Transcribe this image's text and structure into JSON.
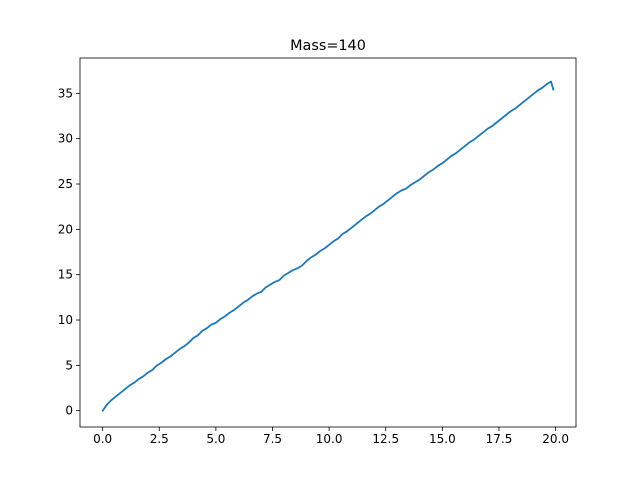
{
  "chart_data": {
    "type": "line",
    "title": "Mass=140",
    "xlabel": "",
    "ylabel": "",
    "xlim": [
      -1.0,
      20.9
    ],
    "ylim": [
      -1.8,
      38.9
    ],
    "x_ticks": [
      0.0,
      2.5,
      5.0,
      7.5,
      10.0,
      12.5,
      15.0,
      17.5,
      20.0
    ],
    "x_tick_labels": [
      "0.0",
      "2.5",
      "5.0",
      "7.5",
      "10.0",
      "12.5",
      "15.0",
      "17.5",
      "20.0"
    ],
    "y_ticks": [
      0,
      5,
      10,
      15,
      20,
      25,
      30,
      35
    ],
    "y_tick_labels": [
      "0",
      "5",
      "10",
      "15",
      "20",
      "25",
      "30",
      "35"
    ],
    "grid": false,
    "legend": "none",
    "line_color": "#1f77b4",
    "series": [
      {
        "x": [
          0.0,
          0.2,
          0.4,
          0.6,
          0.8,
          1.0,
          1.2,
          1.4,
          1.6,
          1.8,
          2.0,
          2.2,
          2.4,
          2.6,
          2.8,
          3.0,
          3.2,
          3.4,
          3.6,
          3.8,
          4.0,
          4.2,
          4.4,
          4.6,
          4.8,
          5.0,
          5.2,
          5.4,
          5.6,
          5.8,
          6.0,
          6.2,
          6.4,
          6.6,
          6.8,
          7.0,
          7.2,
          7.4,
          7.6,
          7.8,
          8.0,
          8.2,
          8.4,
          8.6,
          8.8,
          9.0,
          9.2,
          9.4,
          9.6,
          9.8,
          10.0,
          10.2,
          10.4,
          10.6,
          10.8,
          11.0,
          11.2,
          11.4,
          11.6,
          11.8,
          12.0,
          12.2,
          12.4,
          12.6,
          12.8,
          13.0,
          13.2,
          13.4,
          13.6,
          13.8,
          14.0,
          14.2,
          14.4,
          14.6,
          14.8,
          15.0,
          15.2,
          15.4,
          15.6,
          15.8,
          16.0,
          16.2,
          16.4,
          16.6,
          16.8,
          17.0,
          17.2,
          17.4,
          17.6,
          17.8,
          18.0,
          18.2,
          18.4,
          18.6,
          18.8,
          19.0,
          19.2,
          19.4,
          19.6,
          19.8,
          19.9
        ],
        "y": [
          0.0,
          0.7,
          1.2,
          1.6,
          2.0,
          2.4,
          2.8,
          3.1,
          3.5,
          3.8,
          4.2,
          4.5,
          5.0,
          5.3,
          5.7,
          6.0,
          6.4,
          6.8,
          7.1,
          7.5,
          8.0,
          8.3,
          8.8,
          9.1,
          9.5,
          9.7,
          10.1,
          10.4,
          10.8,
          11.1,
          11.5,
          11.9,
          12.2,
          12.6,
          12.9,
          13.1,
          13.6,
          13.9,
          14.2,
          14.4,
          14.9,
          15.2,
          15.5,
          15.7,
          16.0,
          16.5,
          16.9,
          17.2,
          17.6,
          17.9,
          18.3,
          18.7,
          19.0,
          19.5,
          19.8,
          20.2,
          20.6,
          21.0,
          21.4,
          21.7,
          22.1,
          22.5,
          22.8,
          23.2,
          23.6,
          24.0,
          24.3,
          24.5,
          24.9,
          25.2,
          25.5,
          25.9,
          26.3,
          26.6,
          27.0,
          27.3,
          27.7,
          28.1,
          28.4,
          28.8,
          29.2,
          29.6,
          29.9,
          30.3,
          30.7,
          31.1,
          31.4,
          31.8,
          32.2,
          32.6,
          33.0,
          33.3,
          33.7,
          34.1,
          34.5,
          34.9,
          35.3,
          35.6,
          36.0,
          36.3,
          35.4
        ]
      }
    ]
  }
}
